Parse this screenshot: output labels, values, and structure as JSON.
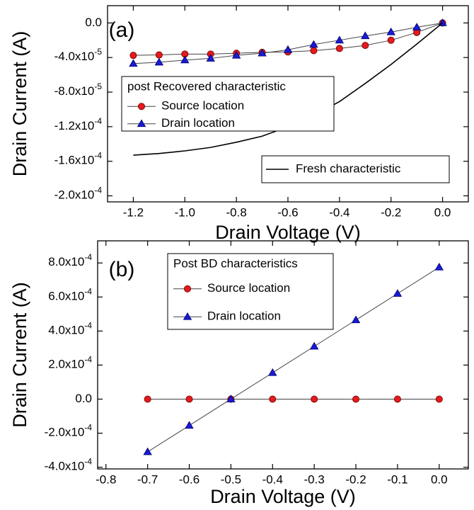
{
  "chart_data": [
    {
      "type": "line",
      "annotation": "(a)",
      "xlabel": "Drain Voltage (V)",
      "ylabel": "Drain Current (A)",
      "legend_title": "post Recovered characteristic",
      "x": [
        -1.2,
        -1.1,
        -1.0,
        -0.9,
        -0.8,
        -0.7,
        -0.6,
        -0.5,
        -0.4,
        -0.3,
        -0.2,
        -0.1,
        0.0
      ],
      "series": [
        {
          "name": "Source location",
          "color": "#e41a1c",
          "marker": "circle",
          "values": [
            -3.75e-05,
            -3.7e-05,
            -3.6e-05,
            -3.6e-05,
            -3.5e-05,
            -3.4e-05,
            -3.35e-05,
            -3.2e-05,
            -2.95e-05,
            -2.6e-05,
            -2e-05,
            -1.1e-05,
            0
          ]
        },
        {
          "name": "Drain location",
          "color": "#1a1ad8",
          "marker": "triangle",
          "values": [
            -4.7e-05,
            -4.55e-05,
            -4.3e-05,
            -4.1e-05,
            -3.75e-05,
            -3.5e-05,
            -3.1e-05,
            -2.5e-05,
            -2e-05,
            -1.5e-05,
            -1.05e-05,
            -5e-06,
            0
          ]
        },
        {
          "name": "Fresh characteristic",
          "color": "#000000",
          "marker": "none",
          "values": [
            -0.000153,
            -0.000151,
            -0.000148,
            -0.000144,
            -0.000138,
            -0.000131,
            -0.00012,
            -0.000107,
            -9.1e-05,
            -7e-05,
            -4.8e-05,
            -2.45e-05,
            0
          ]
        }
      ],
      "xlim": [
        -1.3,
        0.1
      ],
      "xticks": [
        -1.2,
        {
          "value": -1.0,
          "label": "-1.0"
        },
        -0.8,
        -0.6,
        -0.4,
        -0.2,
        {
          "value": 0,
          "label": "0.0"
        }
      ],
      "ylim": [
        -0.000207,
        2e-05
      ],
      "yticks": [
        {
          "value": 0,
          "label": "0.0"
        },
        {
          "value": -4e-05,
          "label": "-4.0x10-5"
        },
        {
          "value": -8e-05,
          "label": "-8.0x10-5"
        },
        {
          "value": -0.00012,
          "label": "-1.2x10-4"
        },
        {
          "value": -0.00016,
          "label": "-1.6x10-4"
        },
        {
          "value": -0.0002,
          "label": "-2.0x10-4"
        }
      ]
    },
    {
      "type": "line",
      "annotation": "(b)",
      "xlabel": "Drain Voltage (V)",
      "ylabel": "Drain Current (A)",
      "legend_title": "Post BD characteristics",
      "x": [
        -0.7,
        -0.6,
        -0.5,
        -0.4,
        -0.3,
        -0.2,
        -0.1,
        0.0
      ],
      "series": [
        {
          "name": "Source location",
          "color": "#e41a1c",
          "marker": "circle",
          "values": [
            0,
            0,
            0,
            0,
            0,
            0,
            0,
            0
          ]
        },
        {
          "name": "Drain location",
          "color": "#1a1ad8",
          "marker": "triangle",
          "values": [
            -0.00031,
            -0.000155,
            0,
            0.000155,
            0.00031,
            0.000465,
            0.00062,
            0.000775
          ]
        }
      ],
      "xlim": [
        -0.82,
        0.07
      ],
      "xticks": [
        -0.8,
        -0.7,
        -0.6,
        -0.5,
        -0.4,
        -0.3,
        -0.2,
        -0.1,
        {
          "value": 0,
          "label": "0.0"
        }
      ],
      "ylim": [
        -0.00041,
        0.00093
      ],
      "yticks": [
        {
          "value": 0.0008,
          "label": "8.0x10-4"
        },
        {
          "value": 0.0006,
          "label": "6.0x10-4"
        },
        {
          "value": 0.0004,
          "label": "4.0x10-4"
        },
        {
          "value": 0.0002,
          "label": "2.0x10-4"
        },
        {
          "value": 0,
          "label": "0.0"
        },
        {
          "value": -0.0002,
          "label": "-2.0x10-4"
        },
        {
          "value": -0.0004,
          "label": "-4.0x10-4"
        }
      ]
    }
  ]
}
